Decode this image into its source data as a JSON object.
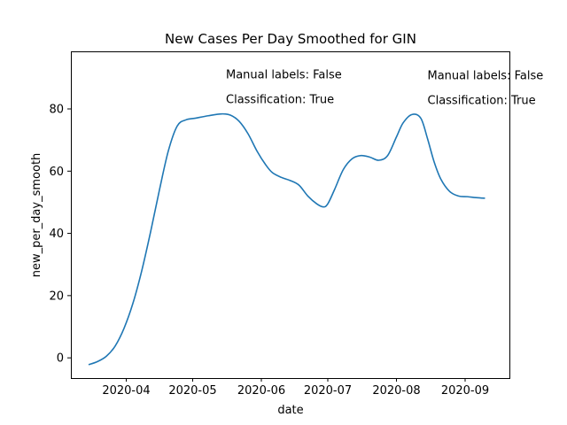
{
  "chart_data": {
    "type": "line",
    "title": "New Cases Per Day Smoothed for GIN",
    "xlabel": "date",
    "ylabel": "new_per_day_smooth",
    "xlim": [
      "2020-03-07",
      "2020-09-21"
    ],
    "ylim": [
      -6.5,
      98.5
    ],
    "x_ticks": [
      "2020-04-01",
      "2020-05-01",
      "2020-06-01",
      "2020-07-01",
      "2020-08-01",
      "2020-09-01"
    ],
    "x_tick_labels": [
      "2020-04",
      "2020-05",
      "2020-06",
      "2020-07",
      "2020-08",
      "2020-09"
    ],
    "y_ticks": [
      0,
      20,
      40,
      60,
      80
    ],
    "y_tick_labels": [
      "0",
      "20",
      "40",
      "60",
      "80"
    ],
    "grid": false,
    "series": [
      {
        "color": "#1f77b4",
        "x": [
          "2020-03-15",
          "2020-03-19",
          "2020-03-23",
          "2020-03-27",
          "2020-03-31",
          "2020-04-04",
          "2020-04-08",
          "2020-04-12",
          "2020-04-16",
          "2020-04-20",
          "2020-04-24",
          "2020-04-28",
          "2020-05-02",
          "2020-05-08",
          "2020-05-14",
          "2020-05-18",
          "2020-05-22",
          "2020-05-26",
          "2020-05-30",
          "2020-06-03",
          "2020-06-06",
          "2020-06-10",
          "2020-06-14",
          "2020-06-18",
          "2020-06-22",
          "2020-06-26",
          "2020-06-29",
          "2020-07-01",
          "2020-07-04",
          "2020-07-08",
          "2020-07-12",
          "2020-07-16",
          "2020-07-20",
          "2020-07-24",
          "2020-07-28",
          "2020-08-01",
          "2020-08-04",
          "2020-08-08",
          "2020-08-12",
          "2020-08-15",
          "2020-08-18",
          "2020-08-21",
          "2020-08-25",
          "2020-08-29",
          "2020-09-02",
          "2020-09-06",
          "2020-09-10"
        ],
        "y": [
          -2.2,
          -1.2,
          0.5,
          3.8,
          9.5,
          17.5,
          28.0,
          40.5,
          54.0,
          66.5,
          74.5,
          76.5,
          77.0,
          77.8,
          78.4,
          78.0,
          76.0,
          72.0,
          66.5,
          62.0,
          59.5,
          58.0,
          57.0,
          55.5,
          52.0,
          49.5,
          48.5,
          49.5,
          54.0,
          60.5,
          64.0,
          65.0,
          64.5,
          63.5,
          65.0,
          71.0,
          75.5,
          78.2,
          77.0,
          70.5,
          63.0,
          57.5,
          53.5,
          52.0,
          51.8,
          51.5,
          51.3
        ]
      }
    ],
    "annotations": [
      {
        "text": "Manual labels: False",
        "x": "2020-05-16",
        "y": 89.8
      },
      {
        "text": "Classification: True",
        "x": "2020-05-16",
        "y": 81.8
      },
      {
        "text": "Manual labels: False",
        "x": "2020-08-15",
        "y": 89.5
      },
      {
        "text": "Classification: True",
        "x": "2020-08-15",
        "y": 81.5
      }
    ]
  }
}
